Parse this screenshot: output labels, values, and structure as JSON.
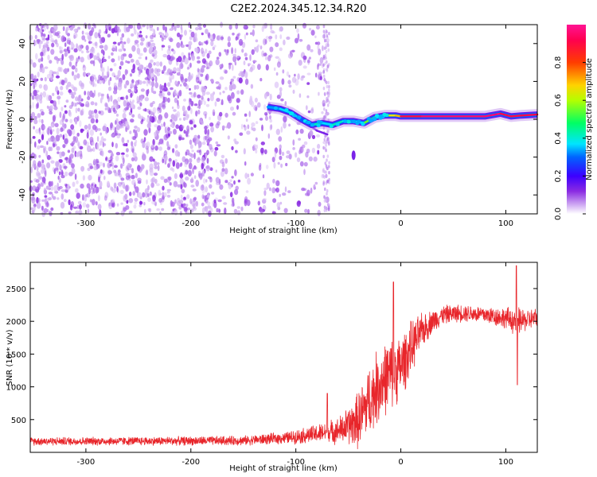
{
  "figure_title": "C2E2.2024.345.12.34.R20",
  "chart_data": [
    {
      "type": "heatmap",
      "title": "C2E2.2024.345.12.34.R20",
      "xlabel": "Height of straight line (km)",
      "ylabel": "Frequency (Hz)",
      "xlim": [
        -353,
        130
      ],
      "ylim": [
        -50,
        50
      ],
      "xticks": [
        -300,
        -200,
        -100,
        0,
        100
      ],
      "yticks": [
        -40,
        -20,
        0,
        20,
        40
      ],
      "xtick_labels": [
        "-300",
        "-200",
        "-100",
        "0",
        "100"
      ],
      "ytick_labels": [
        "-40",
        "-20",
        "0",
        "20",
        "40"
      ],
      "colorbar": {
        "label": "Normalized spectral amplitude",
        "range": [
          0,
          1
        ],
        "ticks": [
          0.0,
          0.2,
          0.4,
          0.6,
          0.8
        ],
        "tick_labels": [
          "0.0",
          "0.2",
          "0.4",
          "0.6",
          "0.8"
        ],
        "colormap": [
          "#ffffff",
          "#c8a0f0",
          "#8a2be2",
          "#3c00ff",
          "#0064ff",
          "#00e5ff",
          "#00ff64",
          "#b4ff00",
          "#ffd200",
          "#ff5a00",
          "#ff0050",
          "#ff1493"
        ]
      },
      "noise_region_x": [
        -353,
        -70
      ],
      "signal_trace": {
        "x": [
          -127,
          -115,
          -105,
          -95,
          -85,
          -75,
          -65,
          -55,
          -45,
          -35,
          -25,
          -15,
          -5,
          0,
          20,
          40,
          60,
          80,
          95,
          105,
          115,
          130
        ],
        "freq": [
          6.5,
          5.5,
          3.5,
          0,
          -3,
          -2,
          -3,
          -1,
          -1,
          -2,
          1,
          2,
          2,
          1.5,
          1.5,
          1.5,
          1.5,
          1.5,
          3,
          1.5,
          2,
          2.5
        ],
        "amplitude": [
          0.4,
          0.45,
          0.45,
          0.35,
          0.5,
          0.45,
          0.5,
          0.45,
          0.45,
          0.6,
          0.65,
          0.7,
          0.75,
          0.9,
          0.95,
          0.95,
          0.95,
          0.95,
          0.9,
          0.9,
          0.9,
          0.9
        ]
      },
      "secondary_streak": {
        "x": [
          -100,
          -90,
          -80,
          -70
        ],
        "freq": [
          2,
          -2,
          -6,
          -8
        ]
      },
      "isolated_blob": {
        "x": -45,
        "freq": -19
      }
    },
    {
      "type": "line",
      "title": "",
      "xlabel": "Height of straight line (km)",
      "ylabel": "SNR (10 * v/v)",
      "xlim": [
        -353,
        130
      ],
      "ylim": [
        0,
        2900
      ],
      "xticks": [
        -300,
        -200,
        -100,
        0,
        100
      ],
      "yticks": [
        500,
        1000,
        1500,
        2000,
        2500
      ],
      "xtick_labels": [
        "-300",
        "-200",
        "-100",
        "0",
        "100"
      ],
      "ytick_labels": [
        "500",
        "1000",
        "1500",
        "2000",
        "2500"
      ],
      "color": "#e8262b",
      "envelope": {
        "x": [
          -353,
          -300,
          -200,
          -150,
          -110,
          -80,
          -60,
          -50,
          -40,
          -30,
          -20,
          -10,
          0,
          10,
          20,
          30,
          40,
          60,
          80,
          100,
          110,
          120,
          130
        ],
        "mean": [
          170,
          170,
          175,
          180,
          220,
          280,
          330,
          400,
          500,
          800,
          1050,
          1200,
          1300,
          1600,
          1850,
          2000,
          2100,
          2130,
          2100,
          2050,
          2000,
          2020,
          2050
        ],
        "amp": [
          70,
          70,
          75,
          80,
          100,
          160,
          220,
          330,
          500,
          600,
          650,
          600,
          550,
          450,
          300,
          200,
          160,
          150,
          150,
          180,
          250,
          180,
          180
        ]
      },
      "spikes": [
        {
          "x": -70,
          "y": 900
        },
        {
          "x": -7,
          "y": 2600
        },
        {
          "x": 110,
          "y": 2850
        },
        {
          "x": 111,
          "y": 1030
        }
      ]
    }
  ]
}
